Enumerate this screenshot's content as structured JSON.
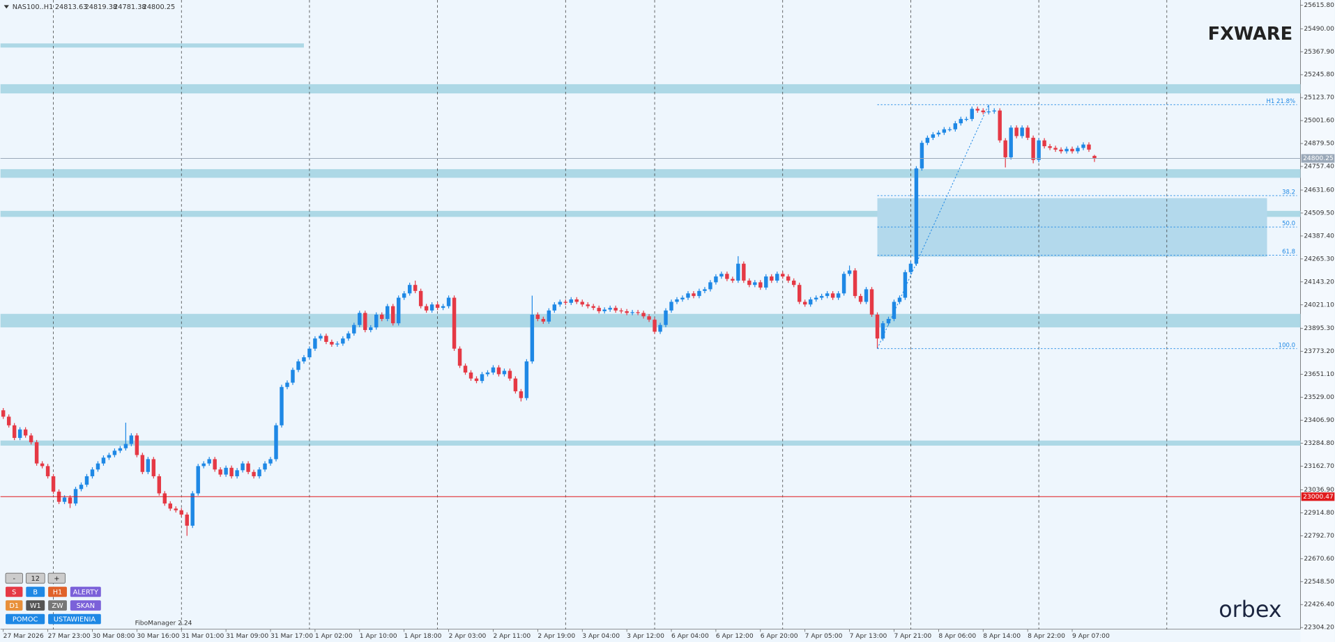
{
  "chart_data": {
    "type": "candlestick",
    "symbol": "NAS100..H1",
    "xlim": [
      -0.5,
      233
    ],
    "ylim": [
      22295,
      25643
    ],
    "yticks": [
      {
        "value": 25615.8,
        "label": "25615.80"
      },
      {
        "value": 25490,
        "label": "25490.00"
      },
      {
        "value": 25367.9,
        "label": "25367.90"
      },
      {
        "value": 25245.8,
        "label": "25245.80"
      },
      {
        "value": 25123.7,
        "label": "25123.70"
      },
      {
        "value": 25001.6,
        "label": "25001.60"
      },
      {
        "value": 24879.5,
        "label": "24879.50"
      },
      {
        "value": 24757.4,
        "label": "24757.40"
      },
      {
        "value": 24631.6,
        "label": "24631.60"
      },
      {
        "value": 24509.5,
        "label": "24509.50"
      },
      {
        "value": 24387.4,
        "label": "24387.40"
      },
      {
        "value": 24265.3,
        "label": "24265.30"
      },
      {
        "value": 24143.2,
        "label": "24143.20"
      },
      {
        "value": 24021.1,
        "label": "24021.10"
      },
      {
        "value": 23895.3,
        "label": "23895.30"
      },
      {
        "value": 23773.2,
        "label": "23773.20"
      },
      {
        "value": 23651.1,
        "label": "23651.10"
      },
      {
        "value": 23529,
        "label": "23529.00"
      },
      {
        "value": 23406.9,
        "label": "23406.90"
      },
      {
        "value": 23284.8,
        "label": "23284.80"
      },
      {
        "value": 23162.7,
        "label": "23162.70"
      },
      {
        "value": 23036.9,
        "label": "23036.90"
      },
      {
        "value": 22914.8,
        "label": "22914.80"
      },
      {
        "value": 22792.7,
        "label": "22792.70"
      },
      {
        "value": 22670.6,
        "label": "22670.60"
      },
      {
        "value": 22548.5,
        "label": "22548.50"
      },
      {
        "value": 22426.4,
        "label": "22426.40"
      },
      {
        "value": 22304.2,
        "label": "22304.20"
      }
    ],
    "xticks": [
      {
        "value": 0,
        "label": "27 Mar 2026"
      },
      {
        "value": 8,
        "label": "27 Mar 23:00"
      },
      {
        "value": 16,
        "label": "30 Mar 08:00"
      },
      {
        "value": 24,
        "label": "30 Mar 16:00"
      },
      {
        "value": 32,
        "label": "31 Mar 01:00"
      },
      {
        "value": 40,
        "label": "31 Mar 09:00"
      },
      {
        "value": 48,
        "label": "31 Mar 17:00"
      },
      {
        "value": 56,
        "label": "1 Apr 02:00"
      },
      {
        "value": 64,
        "label": "1 Apr 10:00"
      },
      {
        "value": 72,
        "label": "1 Apr 18:00"
      },
      {
        "value": 80,
        "label": "2 Apr 03:00"
      },
      {
        "value": 88,
        "label": "2 Apr 11:00"
      },
      {
        "value": 96,
        "label": "2 Apr 19:00"
      },
      {
        "value": 104,
        "label": "3 Apr 04:00"
      },
      {
        "value": 112,
        "label": "3 Apr 12:00"
      },
      {
        "value": 120,
        "label": "6 Apr 04:00"
      },
      {
        "value": 128,
        "label": "6 Apr 12:00"
      },
      {
        "value": 136,
        "label": "6 Apr 20:00"
      },
      {
        "value": 144,
        "label": "7 Apr 05:00"
      },
      {
        "value": 152,
        "label": "7 Apr 13:00"
      },
      {
        "value": 160,
        "label": "7 Apr 21:00"
      },
      {
        "value": 168,
        "label": "8 Apr 06:00"
      },
      {
        "value": 176,
        "label": "8 Apr 14:00"
      },
      {
        "value": 184,
        "label": "8 Apr 22:00"
      },
      {
        "value": 192,
        "label": "9 Apr 07:00"
      }
    ],
    "xgrid": [
      9,
      32,
      55,
      78,
      101,
      117,
      140,
      163,
      186,
      209
    ],
    "up_color": "#1e88e5",
    "down_color": "#e53945",
    "open": [
      23460,
      23426,
      23380,
      23313,
      23358,
      23326,
      23290,
      23177,
      23163,
      23109,
      23027,
      22973,
      22996,
      22964,
      23041,
      23064,
      23109,
      23145,
      23177,
      23208,
      23222,
      23245,
      23258,
      23281,
      23326,
      23222,
      23132,
      23200,
      23109,
      23018,
      22964,
      22937,
      22928,
      22905,
      22846,
      23018,
      23163,
      23177,
      23200,
      23145,
      23118,
      23154,
      23109,
      23141,
      23177,
      23132,
      23109,
      23145,
      23177,
      23200,
      23380,
      23584,
      23607,
      23675,
      23720,
      23742,
      23788,
      23842,
      23856,
      23824,
      23810,
      23815,
      23842,
      23869,
      23914,
      23978,
      23887,
      23901,
      23969,
      23946,
      24014,
      23923,
      24059,
      24082,
      24127,
      24095,
      24014,
      23991,
      24023,
      24005,
      24014,
      24059,
      23788,
      23697,
      23661,
      23629,
      23616,
      23652,
      23661,
      23688,
      23652,
      23670,
      23629,
      23561,
      23525,
      23720,
      23969,
      23946,
      23932,
      23991,
      24023,
      24037,
      24032,
      24050,
      24037,
      24023,
      24014,
      24005,
      23987,
      23996,
      24005,
      23991,
      23987,
      23978,
      23982,
      23978,
      23960,
      23942,
      23878,
      23914,
      23991,
      24037,
      24050,
      24059,
      24082,
      24068,
      24095,
      24104,
      24141,
      24172,
      24186,
      24159,
      24150,
      24240,
      24150,
      24127,
      24141,
      24113,
      24172,
      24150,
      24186,
      24172,
      24150,
      24127,
      24037,
      24023,
      24050,
      24059,
      24068,
      24082,
      24059,
      24082,
      24186,
      24204,
      24068,
      24037,
      24104,
      23969,
      23842,
      23923,
      23946,
      24037,
      24059,
      24195,
      24240,
      24747,
      24883,
      24910,
      24928,
      24937,
      24955,
      24955,
      24987,
      25010,
      25010,
      25064,
      25055,
      25046,
      25050,
      25055,
      24896,
      24806,
      24964,
      24919,
      24964,
      24910,
      24792,
      24896,
      24865,
      24856,
      24847,
      24838,
      24851,
      24838,
      24856,
      24874,
      24813.63
    ],
    "high": [
      23472,
      23438,
      23392,
      23370,
      23370,
      23338,
      23302,
      23189,
      23175,
      23121,
      23039,
      23008,
      23008,
      23053,
      23076,
      23121,
      23157,
      23189,
      23220,
      23234,
      23257,
      23270,
      23394,
      23338,
      23338,
      23234,
      23212,
      23212,
      23121,
      23030,
      22976,
      22949,
      22940,
      22917,
      23030,
      23175,
      23189,
      23212,
      23212,
      23157,
      23166,
      23166,
      23153,
      23189,
      23189,
      23144,
      23157,
      23189,
      23212,
      23392,
      23596,
      23619,
      23687,
      23732,
      23754,
      23800,
      23854,
      23868,
      23868,
      23836,
      23827,
      23854,
      23881,
      23926,
      23990,
      23990,
      23913,
      23981,
      23981,
      24026,
      24026,
      24071,
      24094,
      24139,
      24150,
      24107,
      24026,
      24035,
      24035,
      24026,
      24071,
      24071,
      23800,
      23709,
      23673,
      23641,
      23664,
      23673,
      23700,
      23700,
      23682,
      23682,
      23641,
      23573,
      23732,
      24070,
      23981,
      23958,
      24003,
      24035,
      24049,
      24049,
      24062,
      24062,
      24049,
      24035,
      24026,
      24017,
      24008,
      24017,
      24017,
      24003,
      23999,
      23994,
      23994,
      23990,
      23972,
      23954,
      23926,
      24003,
      24049,
      24062,
      24071,
      24094,
      24094,
      24107,
      24116,
      24153,
      24184,
      24198,
      24198,
      24171,
      24280,
      24252,
      24162,
      24153,
      24153,
      24184,
      24184,
      24198,
      24198,
      24184,
      24162,
      24139,
      24049,
      24062,
      24071,
      24080,
      24094,
      24094,
      24094,
      24198,
      24230,
      24216,
      24080,
      24116,
      24116,
      23981,
      23935,
      23958,
      24049,
      24071,
      24207,
      24252,
      24759,
      24895,
      24922,
      24940,
      24949,
      24967,
      24967,
      24999,
      25022,
      25022,
      25076,
      25076,
      25067,
      25086,
      25067,
      25067,
      24908,
      24976,
      24976,
      24976,
      24976,
      24922,
      24908,
      24908,
      24877,
      24868,
      24859,
      24863,
      24863,
      24868,
      24886,
      24886,
      24819.38
    ],
    "low": [
      23414,
      23368,
      23301,
      23301,
      23314,
      23278,
      23165,
      23151,
      23097,
      23015,
      22961,
      22961,
      22940,
      22952,
      23029,
      23052,
      23097,
      23133,
      23165,
      23196,
      23210,
      23233,
      23246,
      23269,
      23210,
      23120,
      23120,
      23097,
      23006,
      22952,
      22925,
      22916,
      22893,
      22792,
      22834,
      23006,
      23151,
      23165,
      23133,
      23106,
      23106,
      23097,
      23097,
      23129,
      23120,
      23097,
      23097,
      23133,
      23165,
      23188,
      23368,
      23572,
      23595,
      23663,
      23708,
      23730,
      23776,
      23830,
      23812,
      23798,
      23798,
      23803,
      23830,
      23857,
      23902,
      23875,
      23875,
      23889,
      23934,
      23934,
      23911,
      23911,
      24047,
      24070,
      24083,
      24002,
      23979,
      23979,
      23993,
      23993,
      24002,
      23776,
      23685,
      23649,
      23617,
      23604,
      23604,
      23640,
      23649,
      23640,
      23640,
      23617,
      23549,
      23507,
      23513,
      23708,
      23934,
      23920,
      23920,
      23979,
      24011,
      24020,
      24020,
      24025,
      24011,
      24002,
      23993,
      23975,
      23975,
      23984,
      23979,
      23975,
      23966,
      23966,
      23966,
      23948,
      23930,
      23866,
      23866,
      23902,
      23979,
      24025,
      24038,
      24047,
      24056,
      24056,
      24083,
      24092,
      24129,
      24160,
      24147,
      24138,
      24138,
      24138,
      24115,
      24115,
      24101,
      24101,
      24138,
      24138,
      24160,
      24138,
      24115,
      24025,
      24011,
      24011,
      24038,
      24047,
      24056,
      24047,
      24047,
      24070,
      24174,
      24056,
      24025,
      24025,
      23957,
      23788,
      23830,
      23911,
      23934,
      24025,
      24047,
      24183,
      24228,
      24735,
      24871,
      24898,
      24916,
      24925,
      24943,
      24943,
      24975,
      24998,
      24998,
      25043,
      25034,
      25034,
      25038,
      24884,
      24752,
      24794,
      24907,
      24907,
      24898,
      24774,
      24780,
      24853,
      24844,
      24835,
      24826,
      24826,
      24826,
      24826,
      24844,
      24835,
      24781.38
    ],
    "close": [
      23426,
      23380,
      23313,
      23358,
      23326,
      23290,
      23177,
      23163,
      23109,
      23027,
      22973,
      22996,
      22964,
      23041,
      23064,
      23109,
      23145,
      23177,
      23208,
      23222,
      23245,
      23258,
      23281,
      23326,
      23222,
      23132,
      23200,
      23109,
      23018,
      22964,
      22937,
      22928,
      22905,
      22846,
      23018,
      23163,
      23177,
      23200,
      23145,
      23118,
      23154,
      23109,
      23141,
      23177,
      23132,
      23109,
      23145,
      23177,
      23200,
      23380,
      23584,
      23607,
      23675,
      23720,
      23742,
      23788,
      23842,
      23856,
      23824,
      23810,
      23815,
      23842,
      23869,
      23914,
      23978,
      23887,
      23901,
      23969,
      23946,
      24014,
      23923,
      24059,
      24082,
      24127,
      24095,
      24014,
      23991,
      24023,
      24005,
      24014,
      24059,
      23788,
      23697,
      23661,
      23629,
      23616,
      23652,
      23661,
      23688,
      23652,
      23670,
      23629,
      23561,
      23525,
      23720,
      23969,
      23946,
      23932,
      23991,
      24023,
      24037,
      24032,
      24050,
      24037,
      24023,
      24014,
      24005,
      23987,
      23996,
      24005,
      23991,
      23987,
      23978,
      23982,
      23978,
      23960,
      23942,
      23878,
      23914,
      23991,
      24037,
      24050,
      24059,
      24082,
      24068,
      24095,
      24104,
      24141,
      24172,
      24186,
      24159,
      24150,
      24240,
      24150,
      24127,
      24141,
      24113,
      24172,
      24150,
      24186,
      24172,
      24150,
      24127,
      24037,
      24023,
      24050,
      24059,
      24068,
      24082,
      24059,
      24082,
      24186,
      24204,
      24068,
      24037,
      24104,
      23969,
      23842,
      23923,
      23946,
      24037,
      24059,
      24195,
      24240,
      24747,
      24883,
      24910,
      24928,
      24937,
      24955,
      24955,
      24987,
      25010,
      25010,
      25064,
      25055,
      25046,
      25050,
      25055,
      24896,
      24806,
      24964,
      24919,
      24964,
      24910,
      24792,
      24896,
      24865,
      24856,
      24847,
      24838,
      24851,
      24838,
      24856,
      24874,
      24847,
      24800.25
    ],
    "zone_color": "#add8e6",
    "zones": [
      {
        "from": 25412,
        "to": 25390,
        "end": 54
      },
      {
        "from": 25195,
        "to": 25146
      },
      {
        "from": 24743,
        "to": 24697
      },
      {
        "from": 24521,
        "to": 24489
      },
      {
        "from": 23973,
        "to": 23901
      },
      {
        "from": 23299,
        "to": 23272
      }
    ],
    "fibo": {
      "start": 157,
      "peak": 177,
      "end": 227,
      "box": [
        24589,
        24277
      ],
      "color": "#1e88e5",
      "levels": [
        {
          "value": 25086,
          "label": "H1 21.8%"
        },
        {
          "value": 24602,
          "label": "38.2"
        },
        {
          "value": 24435,
          "label": "50.0"
        },
        {
          "value": 24285,
          "label": "61.8"
        },
        {
          "value": 23788,
          "label": "100.0"
        }
      ]
    },
    "hlines": [
      {
        "value": 24800.25,
        "color": "#9aa8b8"
      },
      {
        "value": 23000.47,
        "color": "#e0191b"
      }
    ]
  },
  "panel": {
    "rows": [
      [
        "-",
        "12",
        "+"
      ],
      [
        "S",
        "B",
        "H1",
        "ALERTY"
      ],
      [
        "D1",
        "W1",
        "ZW",
        "SKAN"
      ],
      [
        "POMOC",
        "USTAWIENIA"
      ]
    ],
    "caption": "FiboManager 2.24"
  },
  "brand": {
    "top": "FXWARE",
    "bottom": "orbex"
  }
}
